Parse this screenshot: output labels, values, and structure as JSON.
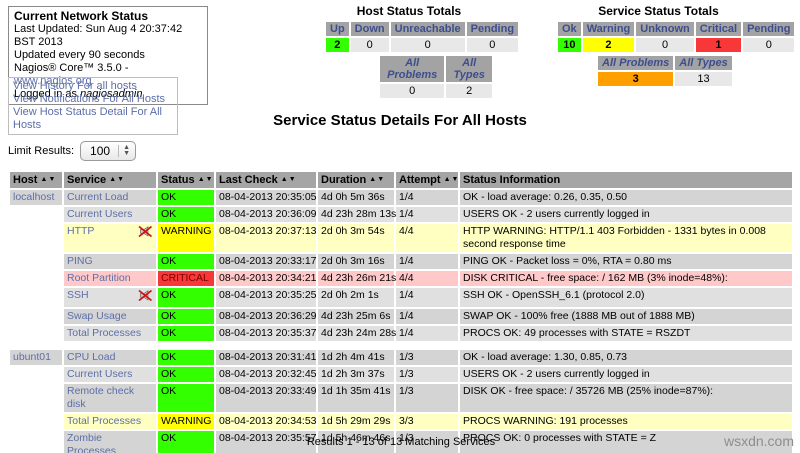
{
  "info_box": {
    "title": "Current Network Status",
    "last_updated": "Last Updated: Sun Aug 4 20:37:42 BST 2013",
    "update_interval": "Updated every 90 seconds",
    "version_prefix": "Nagios® Core™ 3.5.0 - ",
    "version_link": "www.nagios.org",
    "logged_in_prefix": "Logged in as ",
    "logged_in_user": "nagiosadmin"
  },
  "nav_links": {
    "history": "View History For all hosts",
    "notifications": "View Notifications For All Hosts",
    "host_detail": "View Host Status Detail For All Hosts"
  },
  "host_totals": {
    "title": "Host Status Totals",
    "headers": [
      "Up",
      "Down",
      "Unreachable",
      "Pending"
    ],
    "values": [
      "2",
      "0",
      "0",
      "0"
    ],
    "all_problems_label": "All Problems",
    "all_types_label": "All Types",
    "all_problems": "0",
    "all_types": "2"
  },
  "service_totals": {
    "title": "Service Status Totals",
    "headers": [
      "Ok",
      "Warning",
      "Unknown",
      "Critical",
      "Pending"
    ],
    "values": [
      "10",
      "2",
      "0",
      "1",
      "0"
    ],
    "all_problems_label": "All Problems",
    "all_types_label": "All Types",
    "all_problems": "3",
    "all_types": "13"
  },
  "page_title": "Service Status Details For All Hosts",
  "limit_results": {
    "label": "Limit Results:",
    "value": "100"
  },
  "table": {
    "headers": [
      "Host",
      "Service",
      "Status",
      "Last Check",
      "Duration",
      "Attempt",
      "Status Information"
    ],
    "rows": [
      {
        "host": "localhost",
        "service": "Current Load",
        "notif_disabled": false,
        "status": "OK",
        "status_class": "ok",
        "row_class": "even",
        "last_check": "08-04-2013 20:35:05",
        "duration": "4d 0h 5m 36s",
        "attempt": "1/4",
        "info": "OK - load average: 0.26, 0.35, 0.50"
      },
      {
        "host": "",
        "service": "Current Users",
        "notif_disabled": false,
        "status": "OK",
        "status_class": "ok",
        "row_class": "odd",
        "last_check": "08-04-2013 20:36:09",
        "duration": "4d 23h 28m 13s",
        "attempt": "1/4",
        "info": "USERS OK - 2 users currently logged in"
      },
      {
        "host": "",
        "service": "HTTP",
        "notif_disabled": true,
        "status": "WARNING",
        "status_class": "warning",
        "row_class": "warning",
        "last_check": "08-04-2013 20:37:13",
        "duration": "2d 0h 3m 54s",
        "attempt": "4/4",
        "info": "HTTP WARNING: HTTP/1.1 403 Forbidden - 1331 bytes in 0.008 second response time"
      },
      {
        "host": "",
        "service": "PING",
        "notif_disabled": false,
        "status": "OK",
        "status_class": "ok",
        "row_class": "even",
        "last_check": "08-04-2013 20:33:17",
        "duration": "2d 0h 3m 16s",
        "attempt": "1/4",
        "info": "PING OK - Packet loss = 0%, RTA = 0.80 ms"
      },
      {
        "host": "",
        "service": "Root Partition",
        "notif_disabled": false,
        "status": "CRITICAL",
        "status_class": "critical",
        "row_class": "critical",
        "last_check": "08-04-2013 20:34:21",
        "duration": "4d 23h 26m 21s",
        "attempt": "4/4",
        "info": "DISK CRITICAL - free space: / 162 MB (3% inode=48%):"
      },
      {
        "host": "",
        "service": "SSH",
        "notif_disabled": true,
        "status": "OK",
        "status_class": "ok",
        "row_class": "odd",
        "last_check": "08-04-2013 20:35:25",
        "duration": "2d 0h 2m 1s",
        "attempt": "1/4",
        "info": "SSH OK - OpenSSH_6.1 (protocol 2.0)"
      },
      {
        "host": "",
        "service": "Swap Usage",
        "notif_disabled": false,
        "status": "OK",
        "status_class": "ok",
        "row_class": "even",
        "last_check": "08-04-2013 20:36:29",
        "duration": "4d 23h 25m 6s",
        "attempt": "1/4",
        "info": "SWAP OK - 100% free (1888 MB out of 1888 MB)"
      },
      {
        "host": "",
        "service": "Total Processes",
        "notif_disabled": false,
        "status": "OK",
        "status_class": "ok",
        "row_class": "odd",
        "last_check": "08-04-2013 20:35:37",
        "duration": "4d 23h 24m 28s",
        "attempt": "1/4",
        "info": "PROCS OK: 49 processes with STATE = RSZDT"
      },
      {
        "host": "ubunt01",
        "spacer_before": true,
        "service": "CPU Load",
        "notif_disabled": false,
        "status": "OK",
        "status_class": "ok",
        "row_class": "even",
        "last_check": "08-04-2013 20:31:41",
        "duration": "1d 2h 4m 41s",
        "attempt": "1/3",
        "info": "OK - load average: 1.30, 0.85, 0.73"
      },
      {
        "host": "",
        "service": "Current Users",
        "notif_disabled": false,
        "status": "OK",
        "status_class": "ok",
        "row_class": "odd",
        "last_check": "08-04-2013 20:32:45",
        "duration": "1d 2h 3m 37s",
        "attempt": "1/3",
        "info": "USERS OK - 2 users currently logged in"
      },
      {
        "host": "",
        "service": "Remote check disk",
        "notif_disabled": false,
        "status": "OK",
        "status_class": "ok",
        "row_class": "even",
        "last_check": "08-04-2013 20:33:49",
        "duration": "1d 1h 35m 41s",
        "attempt": "1/3",
        "info": "DISK OK - free space: / 35726 MB (25% inode=87%):"
      },
      {
        "host": "",
        "service": "Total Processes",
        "notif_disabled": false,
        "status": "WARNING",
        "status_class": "warning",
        "row_class": "warning",
        "last_check": "08-04-2013 20:34:53",
        "duration": "1d 5h 29m 29s",
        "attempt": "3/3",
        "info": "PROCS WARNING: 191 processes"
      },
      {
        "host": "",
        "service": "Zombie Processes",
        "notif_disabled": false,
        "status": "OK",
        "status_class": "ok",
        "row_class": "even",
        "last_check": "08-04-2013 20:35:57",
        "duration": "1d 5h 46m 46s",
        "attempt": "1/3",
        "info": "PROCS OK: 0 processes with STATE = Z"
      }
    ]
  },
  "footer": "Results 1 - 13 of 13 Matching Services",
  "watermark": "wsxdn.com",
  "colors": {
    "ok_green": "#33ff00",
    "warning_yellow": "#ffff00",
    "critical_red": "#f83838",
    "all_problems_orange": "#ffa000",
    "warning_row": "#feffc1",
    "critical_row": "#ffc9c9",
    "header_gray": "#a5a5a5",
    "link_blue": "#5c6fa8"
  }
}
